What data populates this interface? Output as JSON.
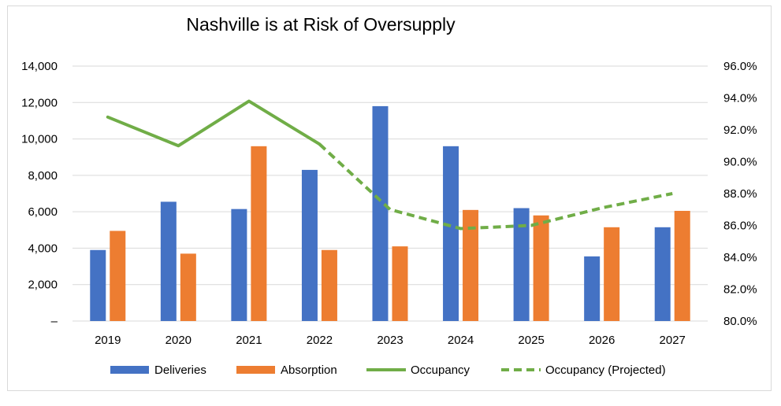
{
  "chart_data": {
    "type": "bar",
    "title": "Nashville is at Risk of Oversupply",
    "categories": [
      "2019",
      "2020",
      "2021",
      "2022",
      "2023",
      "2024",
      "2025",
      "2026",
      "2027"
    ],
    "series": [
      {
        "name": "Deliveries",
        "type": "bar",
        "axis": "left",
        "color": "#4472c4",
        "values": [
          3900,
          6550,
          6150,
          8300,
          11800,
          9600,
          6200,
          3550,
          5150
        ]
      },
      {
        "name": "Absorption",
        "type": "bar",
        "axis": "left",
        "color": "#ed7d31",
        "values": [
          4950,
          3700,
          9600,
          3900,
          4100,
          6100,
          5800,
          5150,
          6050
        ]
      },
      {
        "name": "Occupancy",
        "type": "line",
        "axis": "right",
        "style": "solid",
        "color": "#70ad47",
        "values": [
          92.8,
          91.0,
          93.8,
          91.1,
          null,
          null,
          null,
          null,
          null
        ]
      },
      {
        "name": "Occupancy (Projected)",
        "type": "line",
        "axis": "right",
        "style": "dashed",
        "color": "#70ad47",
        "values": [
          null,
          null,
          null,
          91.1,
          87.0,
          85.8,
          86.0,
          87.1,
          88.0
        ]
      }
    ],
    "y_left": {
      "ylim": [
        0,
        14000
      ],
      "tick_labels": [
        "–",
        "2,000",
        "4,000",
        "6,000",
        "8,000",
        "10,000",
        "12,000",
        "14,000"
      ]
    },
    "y_right": {
      "ylim": [
        80,
        96
      ],
      "tick_labels": [
        "80.0%",
        "82.0%",
        "84.0%",
        "86.0%",
        "88.0%",
        "90.0%",
        "92.0%",
        "94.0%",
        "96.0%"
      ]
    },
    "grid": true,
    "legend_position": "bottom",
    "gridline_color": "#d9d9d9"
  }
}
